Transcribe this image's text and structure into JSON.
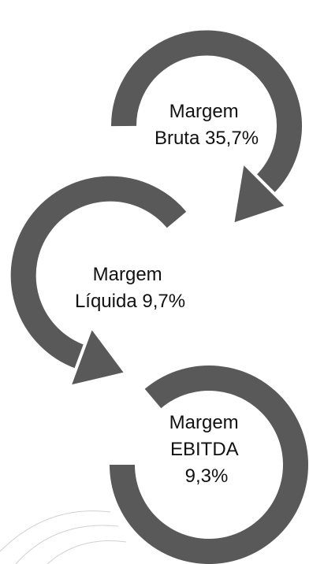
{
  "nodes": [
    {
      "label": [
        "Margem",
        "Bruta 35,7%"
      ]
    },
    {
      "label": [
        "Margem",
        "Líquida 9,7%"
      ]
    },
    {
      "label": [
        "Margem",
        "EBITDA",
        "9,3%"
      ]
    }
  ]
}
